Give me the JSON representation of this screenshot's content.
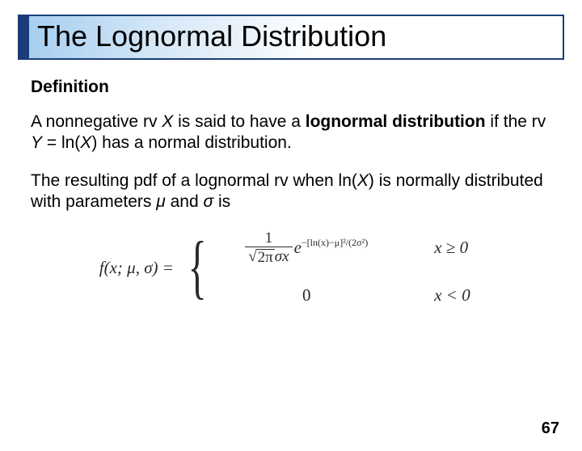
{
  "title": "The Lognormal Distribution",
  "heading": "Definition",
  "para1": {
    "pre": "A nonnegative rv ",
    "X": "X",
    "mid1": " is said to have a ",
    "bold": "lognormal distribution",
    "mid2": " if the rv ",
    "Yexpr": "Y = ln(X)",
    "post": " has a normal distribution."
  },
  "para2": {
    "pre": "The resulting pdf of a lognormal rv when ln(",
    "X": "X",
    "mid1": ") is normally distributed with parameters ",
    "mu": "μ",
    "and": " and ",
    "sigma": "σ",
    "post": " is"
  },
  "formula": {
    "lhs": "f(x; μ, σ) =",
    "num": "1",
    "sqrt_inner": "2π",
    "den_tail": "σx",
    "e": "e",
    "exponent": "−[ln(x)−μ]²/(2σ²)",
    "cond1": "x ≥ 0",
    "zero": "0",
    "cond2": "x < 0"
  },
  "pageNumber": "67",
  "colors": {
    "border": "#1a3d7a",
    "grad_start": "#a7cff0",
    "text": "#000000"
  }
}
